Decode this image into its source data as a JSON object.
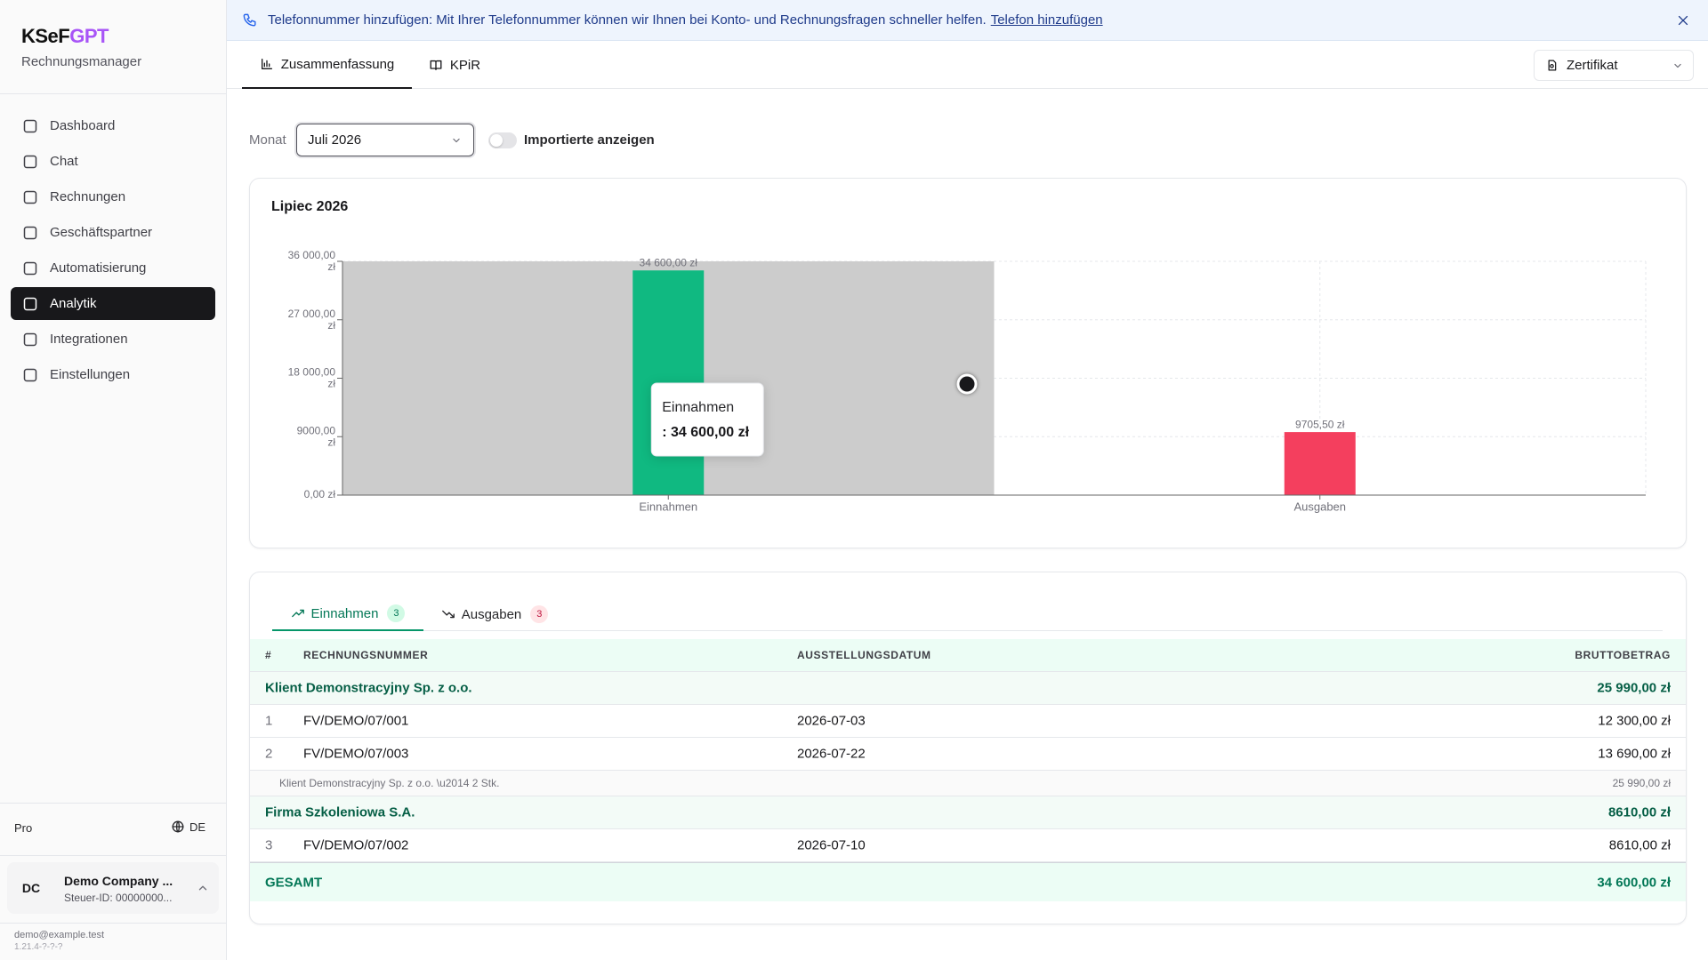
{
  "brand": {
    "name_part1": "KSeF",
    "name_part2": "GPT",
    "subtitle": "Rechnungsmanager"
  },
  "sidebar": {
    "nav": [
      {
        "label": "Dashboard"
      },
      {
        "label": "Chat"
      },
      {
        "label": "Rechnungen"
      },
      {
        "label": "Geschäftspartner"
      },
      {
        "label": "Automatisierung"
      },
      {
        "label": "Analytik",
        "active": true
      },
      {
        "label": "Integrationen"
      },
      {
        "label": "Einstellungen"
      }
    ],
    "plan": "Pro",
    "language": "DE",
    "account": {
      "initials": "DC",
      "name": "Demo Company ...",
      "tax_id": "Steuer-ID: 00000000..."
    },
    "email": "demo@example.test",
    "version": "1.21.4-?-?-?"
  },
  "banner": {
    "text": "Telefonnummer hinzufügen: Mit Ihrer Telefonnummer können wir Ihnen bei Konto- und Rechnungsfragen schneller helfen.",
    "link": "Telefon hinzufügen"
  },
  "tabs": [
    {
      "label": "Zusammenfassung",
      "active": true
    },
    {
      "label": "KPiR"
    }
  ],
  "certificate_select": "Zertifikat",
  "filter": {
    "label": "Monat",
    "month": "Juli 2026",
    "toggle_label": "Importierte anzeigen"
  },
  "chart_data": {
    "type": "bar",
    "title": "Lipiec 2026",
    "categories": [
      "Einnahmen",
      "Ausgaben"
    ],
    "values": [
      34600,
      9705.5
    ],
    "value_labels": [
      "34 600,00 zł",
      "9705,50 zł"
    ],
    "colors": [
      "#10b981",
      "#f43f5e"
    ],
    "ylim": [
      0,
      36000
    ],
    "yticks": [
      {
        "value": 0,
        "label": "0,00 zł"
      },
      {
        "value": 9000,
        "label": "9000,00 zł"
      },
      {
        "value": 18000,
        "label": "18 000,00 zł"
      },
      {
        "value": 27000,
        "label": "27 000,00 zł"
      },
      {
        "value": 36000,
        "label": "36 000,00 zł"
      }
    ],
    "grid": true,
    "tooltip": {
      "index": 0,
      "text": ": 34 600,00 zł"
    }
  },
  "details": {
    "tabs": [
      {
        "label": "Einnahmen",
        "count": 3,
        "active": true
      },
      {
        "label": "Ausgaben",
        "count": 3
      }
    ],
    "table": {
      "columns": [
        "#",
        "RECHNUNGSNUMMER",
        "AUSSTELLUNGSDATUM",
        "BRUTTOBETRAG"
      ],
      "groups": [
        {
          "name": "Klient Demonstracyjny Sp. z o.o.",
          "total": "25 990,00 zł",
          "rows": [
            [
              1,
              "FV/DEMO/07/001",
              "2026-07-03",
              "12 300,00 zł"
            ],
            [
              2,
              "FV/DEMO/07/003",
              "2026-07-22",
              "13 690,00 zł"
            ]
          ],
          "summary": {
            "text": "Klient Demonstracyjny Sp. z o.o. \\u2014 2 Stk.",
            "total": "25 990,00 zł"
          }
        },
        {
          "name": "Firma Szkoleniowa S.A.",
          "total": "8610,00 zł",
          "rows": [
            [
              3,
              "FV/DEMO/07/002",
              "2026-07-10",
              "8610,00 zł"
            ]
          ]
        }
      ],
      "footer": {
        "label": "GESAMT",
        "total": "34 600,00 zł"
      }
    }
  }
}
